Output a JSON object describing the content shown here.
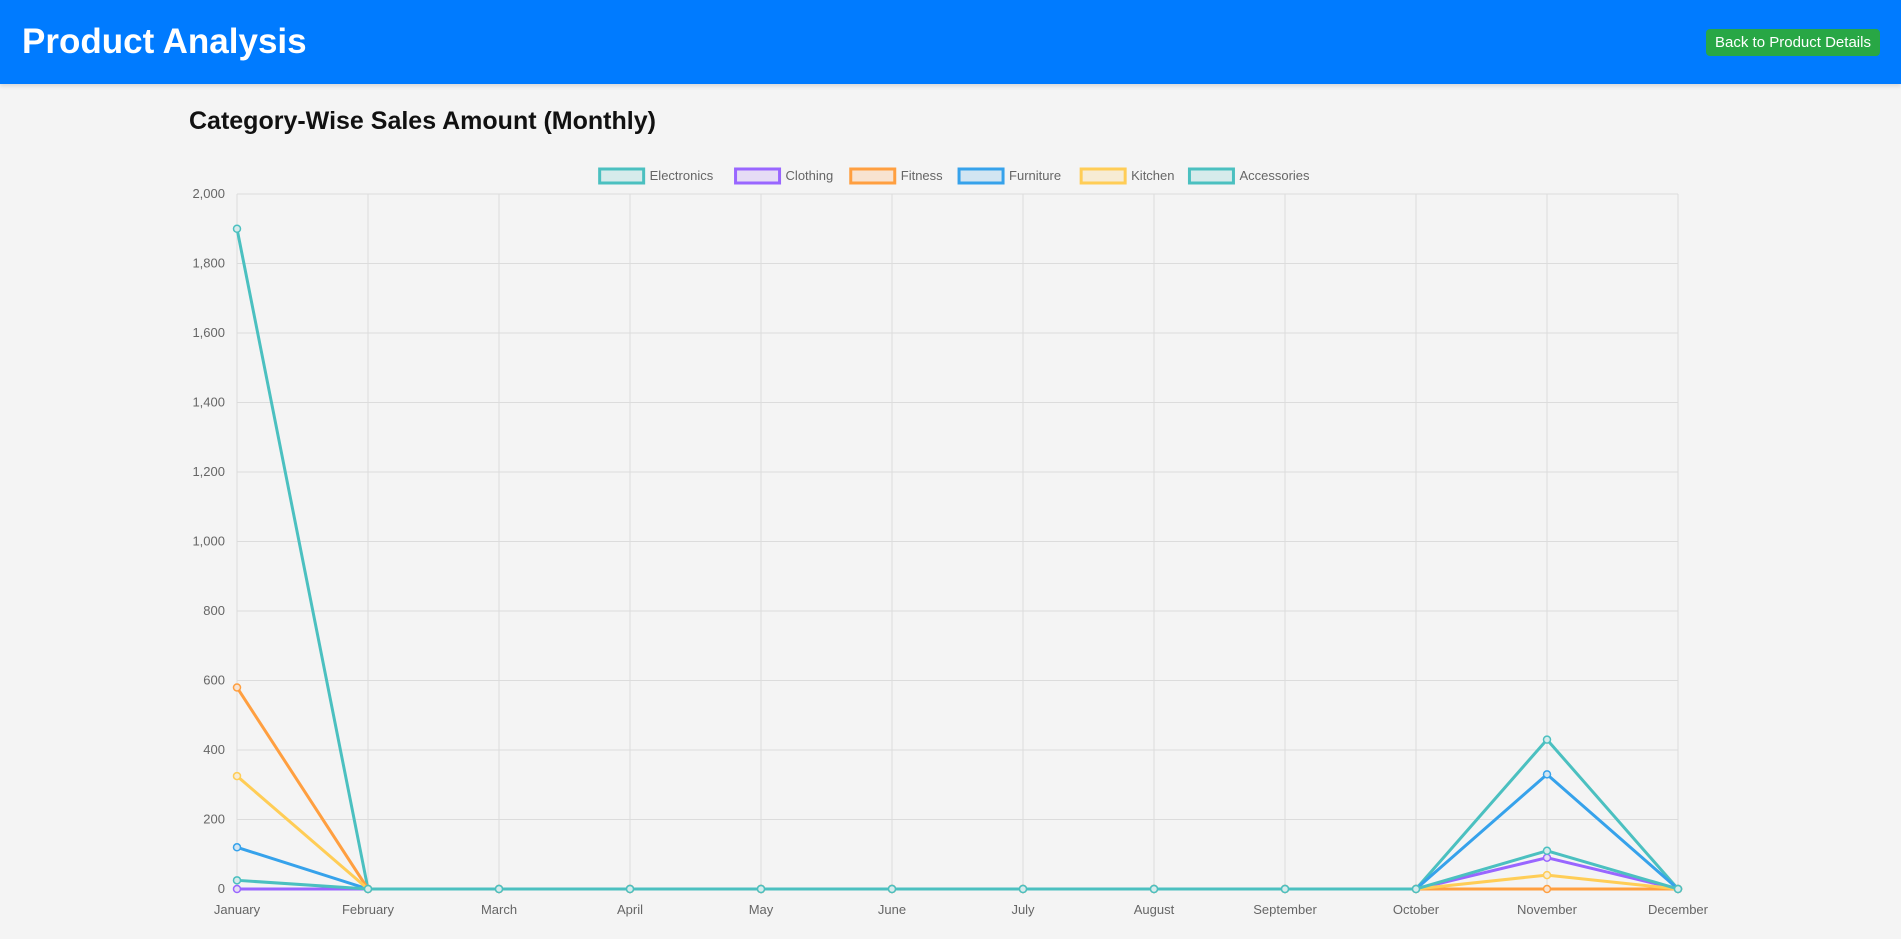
{
  "header": {
    "title": "Product Analysis",
    "back_label": "Back to Product Details"
  },
  "section": {
    "title": "Category-Wise Sales Amount (Monthly)"
  },
  "chart_data": {
    "type": "line",
    "title": "",
    "xlabel": "",
    "ylabel": "",
    "ylim": [
      0,
      2000
    ],
    "yticks": [
      0,
      200,
      400,
      600,
      800,
      1000,
      1200,
      1400,
      1600,
      1800,
      2000
    ],
    "ytick_labels": [
      "0",
      "200",
      "400",
      "600",
      "800",
      "1,000",
      "1,200",
      "1,400",
      "1,600",
      "1,800",
      "2,000"
    ],
    "grid": true,
    "legend_position": "top-center",
    "categories": [
      "January",
      "February",
      "March",
      "April",
      "May",
      "June",
      "July",
      "August",
      "September",
      "October",
      "November",
      "December"
    ],
    "series": [
      {
        "name": "Electronics",
        "color": "#4bc0c0",
        "fill": "#d6ebeb",
        "values": [
          1900,
          0,
          0,
          0,
          0,
          0,
          0,
          0,
          0,
          0,
          430,
          0
        ]
      },
      {
        "name": "Clothing",
        "color": "#9966ff",
        "fill": "#e6dcf5",
        "values": [
          0,
          0,
          0,
          0,
          0,
          0,
          0,
          0,
          0,
          0,
          90,
          0
        ]
      },
      {
        "name": "Fitness",
        "color": "#ff9f40",
        "fill": "#f8e3d1",
        "values": [
          580,
          0,
          0,
          0,
          0,
          0,
          0,
          0,
          0,
          0,
          0,
          0
        ]
      },
      {
        "name": "Furniture",
        "color": "#36a2eb",
        "fill": "#d2e5f2",
        "values": [
          120,
          0,
          0,
          0,
          0,
          0,
          0,
          0,
          0,
          0,
          330,
          0
        ]
      },
      {
        "name": "Kitchen",
        "color": "#ffcd56",
        "fill": "#f7ecd4",
        "values": [
          325,
          0,
          0,
          0,
          0,
          0,
          0,
          0,
          0,
          0,
          40,
          0
        ]
      },
      {
        "name": "Accessories",
        "color": "#4bc0c0",
        "fill": "#d6ebeb",
        "values": [
          25,
          0,
          0,
          0,
          0,
          0,
          0,
          0,
          0,
          0,
          110,
          0
        ]
      }
    ]
  }
}
